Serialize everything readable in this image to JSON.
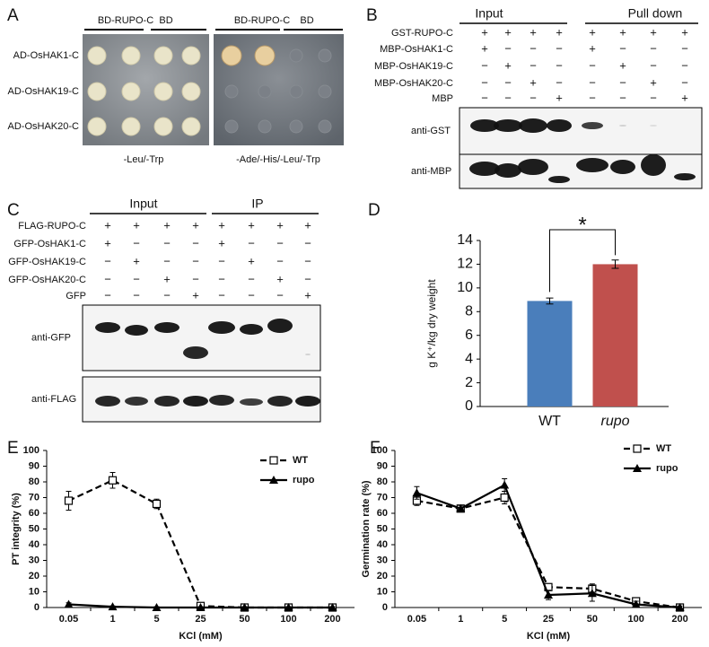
{
  "panel_a": {
    "label": "A",
    "column_headers": [
      "BD-RUPO-C",
      "BD",
      "BD-RUPO-C",
      "BD"
    ],
    "row_labels": [
      "AD-OsHAK1-C",
      "AD-OsHAK19-C",
      "AD-OsHAK20-C"
    ],
    "media": [
      "-Leu/-Trp",
      "-Ade/-His/-Leu/-Trp"
    ]
  },
  "panel_b": {
    "label": "B",
    "groups": [
      "Input",
      "Pull down"
    ],
    "row_labels": [
      "GST-RUPO-C",
      "MBP-OsHAK1-C",
      "MBP-OsHAK19-C",
      "MBP-OsHAK20-C",
      "MBP"
    ],
    "signs": [
      [
        "+",
        "+",
        "+",
        "+",
        "+",
        "+",
        "+",
        "+"
      ],
      [
        "+",
        "−",
        "−",
        "−",
        "+",
        "−",
        "−",
        "−"
      ],
      [
        "−",
        "+",
        "−",
        "−",
        "−",
        "+",
        "−",
        "−"
      ],
      [
        "−",
        "−",
        "+",
        "−",
        "−",
        "−",
        "+",
        "−"
      ],
      [
        "−",
        "−",
        "−",
        "+",
        "−",
        "−",
        "−",
        "+"
      ]
    ],
    "blot_labels": [
      "anti-GST",
      "anti-MBP"
    ]
  },
  "panel_c": {
    "label": "C",
    "groups": [
      "Input",
      "IP"
    ],
    "row_labels": [
      "FLAG-RUPO-C",
      "GFP-OsHAK1-C",
      "GFP-OsHAK19-C",
      "GFP-OsHAK20-C",
      "GFP"
    ],
    "signs": [
      [
        "+",
        "+",
        "+",
        "+",
        "+",
        "+",
        "+",
        "+"
      ],
      [
        "+",
        "−",
        "−",
        "−",
        "+",
        "−",
        "−",
        "−"
      ],
      [
        "−",
        "+",
        "−",
        "−",
        "−",
        "+",
        "−",
        "−"
      ],
      [
        "−",
        "−",
        "+",
        "−",
        "−",
        "−",
        "+",
        "−"
      ],
      [
        "−",
        "−",
        "−",
        "+",
        "−",
        "−",
        "−",
        "+"
      ]
    ],
    "blot_labels": [
      "anti-GFP",
      "anti-FLAG"
    ]
  },
  "chart_data": [
    {
      "type": "bar",
      "panel_label": "D",
      "y_label": "g K⁺/kg dry weight",
      "categories": [
        "WT",
        "rupo"
      ],
      "values": [
        8.9,
        12.0
      ],
      "errors": [
        0.25,
        0.35
      ],
      "colors": [
        "#4a7ebb",
        "#c0504d"
      ],
      "ylim": [
        0,
        14
      ],
      "yticks": [
        0,
        2,
        4,
        6,
        8,
        10,
        12,
        14
      ],
      "annotation": "*",
      "grid": false
    },
    {
      "type": "line",
      "panel_label": "E",
      "y_label": "PT integrity (%)",
      "x_label": "KCl (mM)",
      "categories": [
        "0.05",
        "1",
        "5",
        "25",
        "50",
        "100",
        "200"
      ],
      "ylim": [
        0,
        100
      ],
      "yticks": [
        0,
        10,
        20,
        30,
        40,
        50,
        60,
        70,
        80,
        90,
        100
      ],
      "grid": false,
      "legend": "top-right",
      "series": [
        {
          "name": "WT",
          "color": "#000000",
          "line_style": "dashed",
          "marker": "square-open",
          "values": [
            68,
            81,
            66,
            1,
            0,
            0,
            0
          ],
          "errors": [
            6,
            5,
            3,
            1,
            1,
            1,
            1
          ]
        },
        {
          "name": "rupo",
          "color": "#000000",
          "line_style": "solid",
          "marker": "triangle",
          "values": [
            2,
            0.5,
            0,
            0,
            0,
            0,
            0
          ],
          "errors": [
            1,
            0.5,
            0.5,
            0.5,
            0.5,
            0.5,
            0.5
          ]
        }
      ]
    },
    {
      "type": "line",
      "panel_label": "F",
      "y_label": "Germination rate (%)",
      "x_label": "KCl (mM)",
      "categories": [
        "0.05",
        "1",
        "5",
        "25",
        "50",
        "100",
        "200"
      ],
      "ylim": [
        0,
        100
      ],
      "yticks": [
        0,
        10,
        20,
        30,
        40,
        50,
        60,
        70,
        80,
        90,
        100
      ],
      "grid": false,
      "legend": "top-right",
      "series": [
        {
          "name": "WT",
          "color": "#000000",
          "line_style": "dashed",
          "marker": "square-open",
          "values": [
            68,
            63,
            70,
            13,
            12,
            4,
            0
          ],
          "errors": [
            3,
            2,
            4,
            2,
            3,
            2,
            1
          ]
        },
        {
          "name": "rupo",
          "color": "#000000",
          "line_style": "solid",
          "marker": "triangle",
          "values": [
            73,
            63,
            78,
            8,
            9,
            2,
            0
          ],
          "errors": [
            4,
            2,
            4,
            3,
            5,
            2,
            1
          ]
        }
      ]
    }
  ]
}
